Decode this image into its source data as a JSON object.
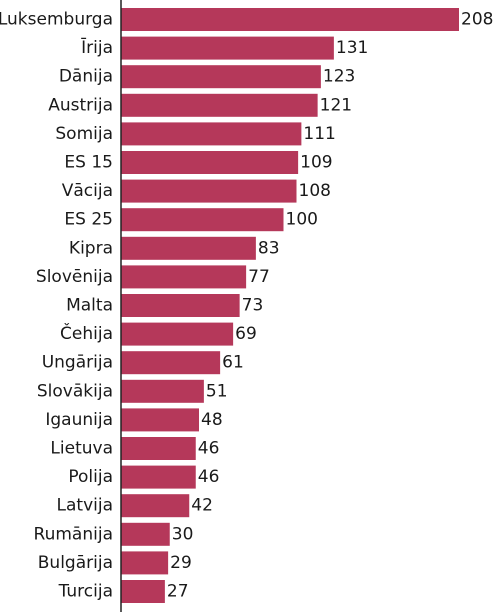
{
  "chart_data": {
    "type": "bar",
    "orientation": "horizontal",
    "categories": [
      "Luksemburga",
      "Īrija",
      "Dānija",
      "Austrija",
      "Somija",
      "ES 15",
      "Vācija",
      "ES 25",
      "Kipra",
      "Slovēnija",
      "Malta",
      "Čehija",
      "Ungārija",
      "Slovākija",
      "Igaunija",
      "Lietuva",
      "Polija",
      "Latvija",
      "Rumānija",
      "Bulgārija",
      "Turcija"
    ],
    "values": [
      208,
      131,
      123,
      121,
      111,
      109,
      108,
      100,
      83,
      77,
      73,
      69,
      61,
      51,
      48,
      46,
      46,
      42,
      30,
      29,
      27
    ],
    "bar_color": "#b5385a",
    "axis_color": "#222222",
    "data_labels": true,
    "grid": false,
    "xlim": [
      0,
      208
    ]
  }
}
